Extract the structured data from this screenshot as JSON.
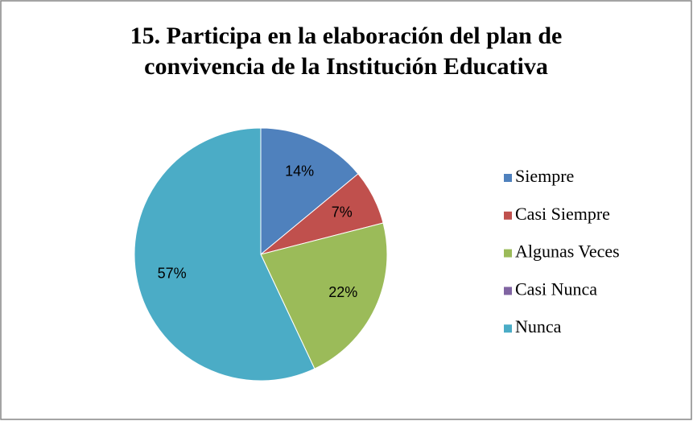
{
  "chart_data": {
    "type": "pie",
    "title": "15. Participa en la elaboración del plan de convivencia de la Institución Educativa",
    "categories": [
      "Siempre",
      "Casi Siempre",
      "Algunas Veces",
      "Casi Nunca",
      "Nunca"
    ],
    "values": [
      14,
      7,
      22,
      0,
      57
    ],
    "value_labels": [
      "14%",
      "7%",
      "22%",
      null,
      "57%"
    ],
    "colors": [
      "#4f81bd",
      "#c0504d",
      "#9bbb59",
      "#8064a2",
      "#4bacc6"
    ],
    "legend": "right"
  }
}
